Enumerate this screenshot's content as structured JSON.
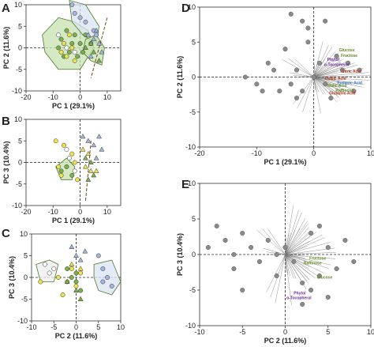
{
  "chart_data": [
    {
      "panel": "A",
      "type": "scatter",
      "xlabel": "PC 1 (29.1%)",
      "ylabel": "PC 2 (11.6%)",
      "xlim": [
        -20,
        15
      ],
      "ylim": [
        -10,
        10
      ],
      "xticks": [
        -20,
        -10,
        0,
        10
      ],
      "yticks": [
        -10,
        -5,
        0,
        5,
        10
      ],
      "series": [
        {
          "marker": "green-circle",
          "values": [
            [
              -7,
              2
            ],
            [
              -5,
              4
            ],
            [
              -6,
              -2
            ],
            [
              -3,
              1
            ],
            [
              -2,
              3
            ],
            [
              -4,
              -1
            ],
            [
              0,
              1
            ],
            [
              1,
              -1
            ],
            [
              2,
              3
            ],
            [
              4,
              1
            ],
            [
              -8,
              0
            ],
            [
              -1,
              -2
            ]
          ]
        },
        {
          "marker": "yellow-circle",
          "values": [
            [
              -6,
              1
            ],
            [
              -5,
              -2
            ],
            [
              -3,
              0
            ],
            [
              -4,
              3
            ],
            [
              -2,
              -3
            ],
            [
              -7,
              -1
            ]
          ]
        },
        {
          "marker": "white-circle",
          "values": [
            [
              -5,
              0
            ],
            [
              -2,
              -1
            ],
            [
              -8,
              3
            ]
          ]
        },
        {
          "marker": "blue-circle",
          "values": [
            [
              -2,
              8
            ],
            [
              0,
              7
            ],
            [
              2,
              6
            ],
            [
              -3,
              10
            ],
            [
              5,
              4
            ],
            [
              6,
              3
            ]
          ]
        },
        {
          "marker": "blue-triangle",
          "values": [
            [
              3,
              3
            ],
            [
              5,
              2
            ],
            [
              6,
              4
            ],
            [
              7,
              1
            ],
            [
              8,
              -1
            ],
            [
              4,
              -2
            ]
          ]
        },
        {
          "marker": "green-triangle",
          "values": [
            [
              2,
              0
            ],
            [
              5,
              -1
            ],
            [
              7,
              -3
            ],
            [
              4,
              1
            ]
          ]
        }
      ]
    },
    {
      "panel": "B",
      "type": "scatter",
      "xlabel": "PC 1 (29.1%)",
      "ylabel": "PC 3 (10.4%)",
      "xlim": [
        -20,
        15
      ],
      "ylim": [
        -10,
        10
      ],
      "xticks": [
        -20,
        -10,
        0,
        10
      ],
      "yticks": [
        -10,
        -5,
        0,
        5,
        10
      ],
      "series": [
        {
          "marker": "yellow-circle",
          "values": [
            [
              -9,
              5
            ],
            [
              -6,
              4
            ],
            [
              -8,
              -1
            ],
            [
              -3,
              2
            ],
            [
              -2,
              0
            ],
            [
              -7,
              -3
            ],
            [
              -1,
              -4
            ]
          ]
        },
        {
          "marker": "white-circle",
          "values": [
            [
              -5,
              3
            ],
            [
              -4,
              1
            ],
            [
              -2,
              -2
            ]
          ]
        },
        {
          "marker": "green-circle",
          "values": [
            [
              -7,
              -2
            ],
            [
              -5,
              -1
            ],
            [
              -3,
              -3
            ]
          ]
        },
        {
          "marker": "blue-triangle",
          "values": [
            [
              1,
              6
            ],
            [
              3,
              5
            ],
            [
              5,
              4
            ],
            [
              7,
              6
            ],
            [
              8,
              3
            ],
            [
              6,
              1
            ]
          ]
        },
        {
          "marker": "yellow-triangle",
          "values": [
            [
              1,
              3
            ],
            [
              2,
              -1
            ],
            [
              4,
              -2
            ],
            [
              3,
              2
            ],
            [
              6,
              -2
            ]
          ]
        },
        {
          "marker": "green-triangle",
          "values": [
            [
              2,
              1
            ],
            [
              4,
              0
            ],
            [
              5,
              -3
            ],
            [
              3,
              -4
            ]
          ]
        }
      ]
    },
    {
      "panel": "C",
      "type": "scatter",
      "xlabel": "PC 2 (11.6%)",
      "ylabel": "PC 3 (10.4%)",
      "xlim": [
        -10,
        10
      ],
      "ylim": [
        -10,
        10
      ],
      "xticks": [
        -10,
        -5,
        0,
        5,
        10
      ],
      "yticks": [
        -10,
        -5,
        0,
        5,
        10
      ],
      "series": [
        {
          "marker": "white-circle",
          "values": [
            [
              -7,
              3
            ],
            [
              -6,
              1
            ],
            [
              -5,
              2
            ]
          ]
        },
        {
          "marker": "yellow-circle",
          "values": [
            [
              -4,
              0
            ],
            [
              -2,
              -1
            ],
            [
              -1,
              2
            ],
            [
              0,
              -2
            ],
            [
              1,
              1
            ],
            [
              -3,
              -4
            ],
            [
              -8,
              -1
            ]
          ]
        },
        {
          "marker": "green-circle",
          "values": [
            [
              -1,
              0
            ],
            [
              0,
              -1
            ],
            [
              1,
              -3
            ],
            [
              -2,
              2
            ],
            [
              0,
              1
            ]
          ]
        },
        {
          "marker": "blue-circle",
          "values": [
            [
              6,
              -1
            ],
            [
              7,
              0
            ],
            [
              8,
              -2
            ],
            [
              6,
              2
            ],
            [
              5,
              5
            ]
          ]
        },
        {
          "marker": "blue-triangle",
          "values": [
            [
              0,
              5
            ],
            [
              1,
              4
            ],
            [
              2,
              6
            ],
            [
              -1,
              7
            ]
          ]
        },
        {
          "marker": "green-triangle",
          "values": [
            [
              -2,
              -1
            ],
            [
              0,
              -3
            ],
            [
              1,
              -5
            ]
          ]
        },
        {
          "marker": "yellow-triangle",
          "values": [
            [
              -1,
              3
            ],
            [
              1,
              2
            ]
          ]
        }
      ]
    },
    {
      "panel": "D",
      "type": "scatter",
      "xlabel": "PC 1 (29.1%)",
      "ylabel": "PC 2 (11.6%)",
      "xlim": [
        -20,
        10
      ],
      "ylim": [
        -10,
        10
      ],
      "xticks": [
        -20,
        -10,
        0,
        10
      ],
      "yticks": [
        -10,
        -5,
        0,
        5,
        10
      ],
      "scores": [
        [
          -12,
          0
        ],
        [
          -10,
          -1
        ],
        [
          -8,
          2
        ],
        [
          -7,
          1
        ],
        [
          -6,
          -2
        ],
        [
          -5,
          4
        ],
        [
          -4,
          -1
        ],
        [
          -3,
          1
        ],
        [
          -3,
          -3
        ],
        [
          -2,
          -2
        ],
        [
          -1,
          5
        ],
        [
          0,
          0
        ],
        [
          1,
          2
        ],
        [
          2,
          -1
        ],
        [
          3,
          -3
        ],
        [
          4,
          3
        ],
        [
          5,
          1
        ],
        [
          6,
          2
        ],
        [
          7,
          -2
        ],
        [
          8,
          1
        ],
        [
          -4,
          9
        ],
        [
          -2,
          8
        ],
        [
          -1,
          7
        ],
        [
          2,
          8
        ],
        [
          -9,
          -2
        ]
      ],
      "labels": [
        {
          "text": "Glucose",
          "color": "#5f8a1f",
          "pos": [
            5.8,
            3.7
          ]
        },
        {
          "text": "Fructose",
          "color": "#5f8a1f",
          "pos": [
            6.2,
            2.9
          ]
        },
        {
          "text": "Phytol",
          "color": "#6a2a9a",
          "pos": [
            3.4,
            2.3
          ]
        },
        {
          "text": "α-Tocopherol",
          "color": "#6a2a9a",
          "pos": [
            4.0,
            1.6
          ]
        },
        {
          "text": "Malic Acid",
          "color": "#5f8a1f",
          "pos": [
            4.1,
            -1.4
          ]
        },
        {
          "text": "Raffinose",
          "color": "#5f8a1f",
          "pos": [
            5.4,
            -2.1
          ]
        },
        {
          "text": "Citric Acid",
          "color": "#b5311c",
          "pos": [
            6.6,
            0.6
          ]
        },
        {
          "text": "Fumaric Acid",
          "color": "#2a6ab5",
          "pos": [
            6.3,
            -1.0
          ]
        },
        {
          "text": "Oxalic Acid",
          "color": "#b5311c",
          "pos": [
            3.8,
            -0.4
          ]
        },
        {
          "text": "Glutamic Acid",
          "color": "#b5311c",
          "pos": [
            5.0,
            -2.5
          ]
        }
      ]
    },
    {
      "panel": "E",
      "type": "scatter",
      "xlabel": "PC 2 (11.6%)",
      "ylabel": "PC 3 (10.4%)",
      "xlim": [
        -10,
        10
      ],
      "ylim": [
        -10,
        10
      ],
      "xticks": [
        -10,
        -5,
        0,
        5,
        10
      ],
      "yticks": [
        -10,
        -5,
        0,
        5,
        10
      ],
      "scores": [
        [
          -8,
          4
        ],
        [
          -7,
          2
        ],
        [
          -6,
          0
        ],
        [
          -5,
          3
        ],
        [
          -4,
          1
        ],
        [
          -3,
          -1
        ],
        [
          -2,
          2
        ],
        [
          -1,
          0
        ],
        [
          0,
          1
        ],
        [
          1,
          -1
        ],
        [
          2,
          -4
        ],
        [
          3,
          3
        ],
        [
          4,
          -3
        ],
        [
          5,
          1
        ],
        [
          6,
          -2
        ],
        [
          7,
          2
        ],
        [
          8,
          -1
        ],
        [
          -6,
          -2
        ],
        [
          -1,
          -3
        ],
        [
          2,
          -7
        ],
        [
          -5,
          -5
        ],
        [
          4,
          4
        ],
        [
          3,
          -5
        ],
        [
          5,
          -6
        ],
        [
          -9,
          1
        ]
      ],
      "labels": [
        {
          "text": "Fructose",
          "color": "#5f8a1f",
          "pos": [
            3.8,
            -0.7
          ]
        },
        {
          "text": "Raffinose",
          "color": "#5f8a1f",
          "pos": [
            3.2,
            -1.4
          ]
        },
        {
          "text": "Glucose",
          "color": "#5f8a1f",
          "pos": [
            4.6,
            -3.4
          ]
        },
        {
          "text": "Phytol",
          "color": "#6a2a9a",
          "pos": [
            1.7,
            -5.6
          ]
        },
        {
          "text": "α-Tocopherol",
          "color": "#6a2a9a",
          "pos": [
            1.6,
            -6.3
          ]
        }
      ]
    }
  ],
  "panel_letters": {
    "a": "A",
    "b": "B",
    "c": "C",
    "d": "D",
    "e": "E"
  },
  "colors": {
    "green": "#7bb04a",
    "yellow": "#ece44a",
    "white": "#ffffff",
    "blue": "#a3b6dc",
    "grey": "#8a8a8a",
    "hull-green": "#c7e2b0",
    "hull-blue": "#dbe3f3",
    "hull-grey": "#eeeeee"
  }
}
